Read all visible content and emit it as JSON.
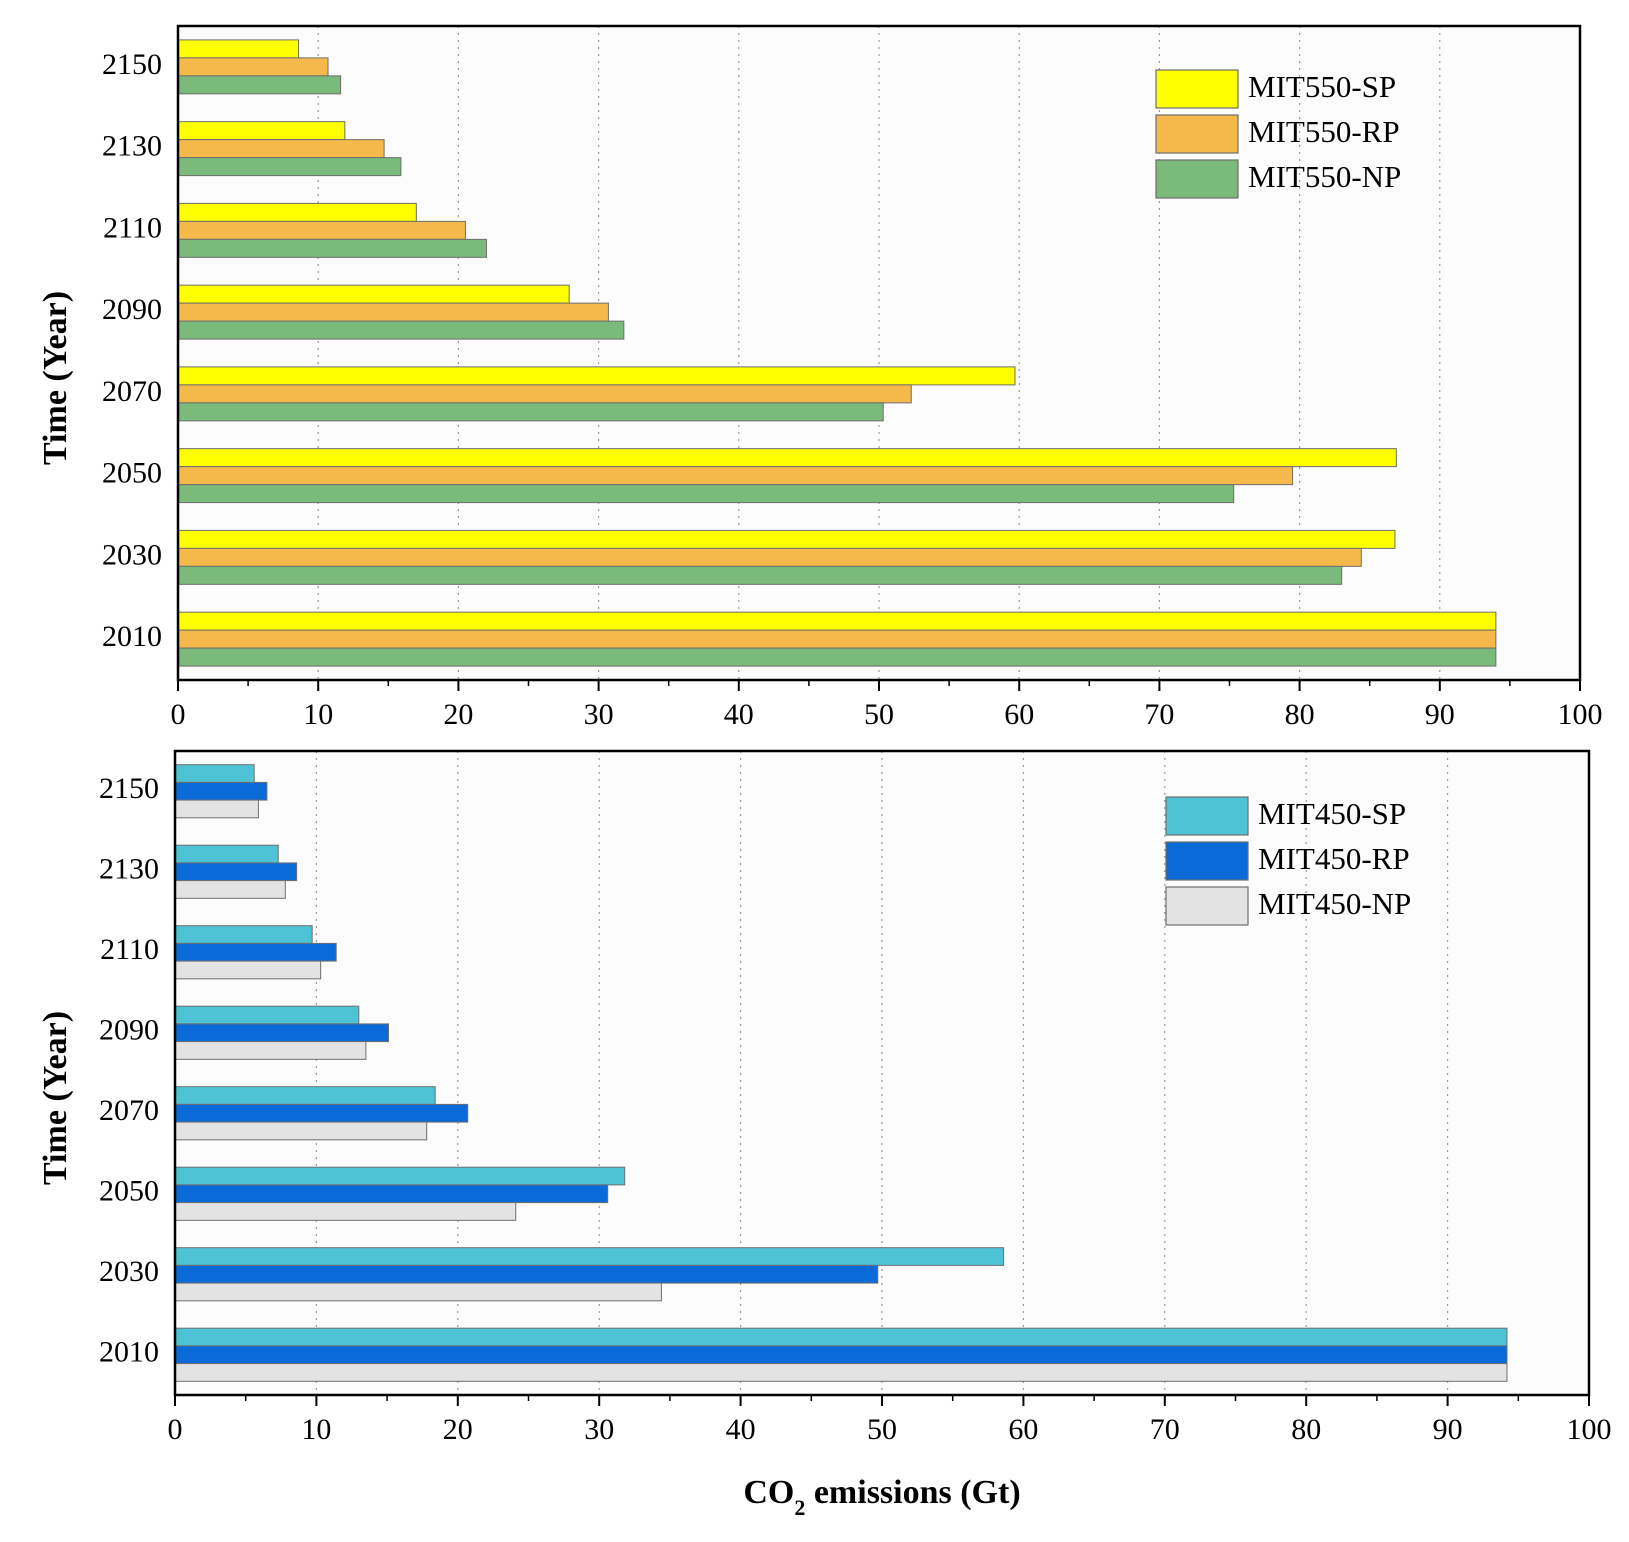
{
  "chart_data": [
    {
      "type": "bar",
      "orientation": "horizontal",
      "categories": [
        "2010",
        "2030",
        "2050",
        "2070",
        "2090",
        "2110",
        "2130",
        "2150"
      ],
      "series": [
        {
          "name": "MIT550-SP",
          "color": "#ffff00",
          "values": [
            94,
            86.8,
            86.9,
            59.7,
            27.9,
            17.0,
            11.9,
            8.6
          ]
        },
        {
          "name": "MIT550-RP",
          "color": "#f5b84a",
          "values": [
            94,
            84.4,
            79.5,
            52.3,
            30.7,
            20.5,
            14.7,
            10.7
          ]
        },
        {
          "name": "MIT550-NP",
          "color": "#7aba7a",
          "values": [
            94,
            83.0,
            75.3,
            50.3,
            31.8,
            22.0,
            15.9,
            11.6
          ]
        }
      ],
      "xlabel": "",
      "ylabel": "Time (Year)",
      "xlim": [
        0,
        100
      ],
      "xticks": [
        "0",
        "10",
        "20",
        "30",
        "40",
        "50",
        "60",
        "70",
        "80",
        "90",
        "100"
      ],
      "legend_position": "top-right",
      "grid": "vertical dotted"
    },
    {
      "type": "bar",
      "orientation": "horizontal",
      "categories": [
        "2010",
        "2030",
        "2050",
        "2070",
        "2090",
        "2110",
        "2130",
        "2150"
      ],
      "series": [
        {
          "name": "MIT450-SP",
          "color": "#4fc3d6",
          "values": [
            94.2,
            58.6,
            31.8,
            18.4,
            13.0,
            9.7,
            7.3,
            5.6
          ]
        },
        {
          "name": "MIT450-RP",
          "color": "#0a6ad8",
          "values": [
            94.2,
            49.7,
            30.6,
            20.7,
            15.1,
            11.4,
            8.6,
            6.5
          ]
        },
        {
          "name": "MIT450-NP",
          "color": "#e3e3e3",
          "values": [
            94.2,
            34.4,
            24.1,
            17.8,
            13.5,
            10.3,
            7.8,
            5.9
          ]
        }
      ],
      "xlabel_parts": [
        "CO",
        "2",
        " emissions (Gt)"
      ],
      "ylabel": "Time (Year)",
      "xlim": [
        0,
        100
      ],
      "xticks": [
        "0",
        "10",
        "20",
        "30",
        "40",
        "50",
        "60",
        "70",
        "80",
        "90",
        "100"
      ],
      "legend_position": "top-right",
      "grid": "vertical dotted"
    }
  ]
}
